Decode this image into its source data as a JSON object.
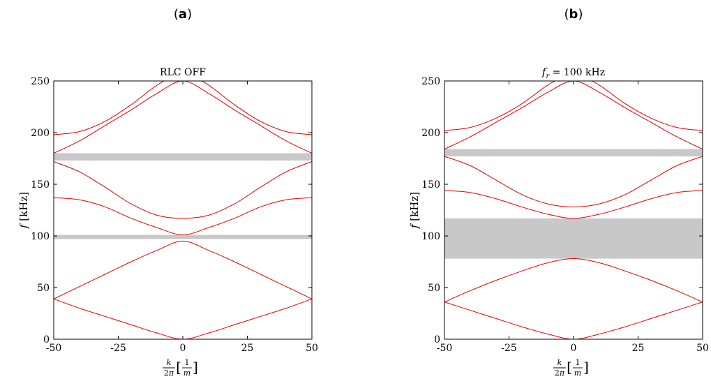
{
  "colors": {
    "curve": "#e00000",
    "band_gap": "#c8c8c8",
    "frame": "#000000"
  },
  "chart_data": [
    {
      "type": "line",
      "panel_label": "a",
      "title": "RLC OFF",
      "xlabel": "k/2π [1/m]",
      "ylabel": "f [kHz]",
      "xlim": [
        -50,
        50
      ],
      "ylim": [
        0,
        250
      ],
      "xticks": [
        "-50",
        "-25",
        "0",
        "25",
        "50"
      ],
      "yticks": [
        "0",
        "50",
        "100",
        "150",
        "200",
        "250"
      ],
      "grid": false,
      "band_gaps": [
        [
          97,
          101
        ],
        [
          173,
          180
        ]
      ],
      "series": [
        {
          "x": [
            -50,
            -40,
            -30,
            -20,
            -10,
            0,
            10,
            20,
            30,
            40,
            50
          ],
          "y": [
            39,
            30,
            22,
            14,
            6,
            0,
            6,
            14,
            22,
            30,
            39
          ]
        },
        {
          "x": [
            -50,
            -40,
            -30,
            -20,
            -10,
            0,
            10,
            20,
            30,
            40,
            50
          ],
          "y": [
            39,
            51,
            63,
            75,
            86,
            95,
            86,
            75,
            63,
            51,
            39
          ]
        },
        {
          "x": [
            -50,
            -40,
            -30,
            -20,
            -10,
            0,
            10,
            20,
            30,
            40,
            50
          ],
          "y": [
            137,
            135,
            128,
            117,
            108,
            101,
            108,
            117,
            128,
            135,
            137
          ]
        },
        {
          "x": [
            -50,
            -40,
            -30,
            -20,
            -10,
            0,
            10,
            20,
            30,
            40,
            50
          ],
          "y": [
            172,
            162,
            147,
            131,
            120,
            117,
            120,
            131,
            147,
            162,
            172
          ]
        },
        {
          "x": [
            -50,
            -40,
            -30,
            -20,
            -10,
            0,
            10,
            20,
            30,
            40,
            50
          ],
          "y": [
            180,
            192,
            207,
            222,
            238,
            250,
            238,
            222,
            207,
            192,
            180
          ]
        },
        {
          "x": [
            -50,
            -40,
            -30,
            -20,
            -10,
            -5,
            5,
            10,
            20,
            30,
            40,
            50
          ],
          "y": [
            198,
            201,
            211,
            227,
            246,
            251,
            251,
            246,
            227,
            211,
            201,
            198
          ]
        }
      ]
    },
    {
      "type": "line",
      "panel_label": "b",
      "title": "f_r = 100 kHz",
      "xlabel": "k/2π [1/m]",
      "ylabel": "f [kHz]",
      "xlim": [
        -50,
        50
      ],
      "ylim": [
        0,
        250
      ],
      "xticks": [
        "-50",
        "-25",
        "0",
        "25",
        "50"
      ],
      "yticks": [
        "0",
        "50",
        "100",
        "150",
        "200",
        "250"
      ],
      "grid": false,
      "band_gaps": [
        [
          78,
          117
        ],
        [
          177,
          184
        ]
      ],
      "series": [
        {
          "x": [
            -50,
            -40,
            -30,
            -20,
            -10,
            0,
            10,
            20,
            30,
            40,
            50
          ],
          "y": [
            36,
            28,
            20,
            12,
            5,
            0,
            5,
            12,
            20,
            28,
            36
          ]
        },
        {
          "x": [
            -50,
            -40,
            -30,
            -20,
            -10,
            0,
            10,
            20,
            30,
            40,
            50
          ],
          "y": [
            36,
            47,
            57,
            66,
            74,
            78,
            74,
            66,
            57,
            47,
            36
          ]
        },
        {
          "x": [
            -50,
            -40,
            -30,
            -20,
            -10,
            0,
            10,
            20,
            30,
            40,
            50
          ],
          "y": [
            144,
            142,
            136,
            128,
            121,
            117,
            121,
            128,
            136,
            142,
            144
          ]
        },
        {
          "x": [
            -50,
            -40,
            -30,
            -20,
            -10,
            0,
            10,
            20,
            30,
            40,
            50
          ],
          "y": [
            177,
            168,
            154,
            140,
            131,
            128,
            131,
            140,
            154,
            168,
            177
          ]
        },
        {
          "x": [
            -50,
            -40,
            -30,
            -20,
            -10,
            0,
            10,
            20,
            30,
            40,
            50
          ],
          "y": [
            184,
            196,
            210,
            224,
            239,
            250,
            239,
            224,
            210,
            196,
            184
          ]
        },
        {
          "x": [
            -50,
            -40,
            -30,
            -20,
            -10,
            -5,
            5,
            10,
            20,
            30,
            40,
            50
          ],
          "y": [
            202,
            205,
            214,
            228,
            246,
            251,
            251,
            246,
            228,
            214,
            205,
            202
          ]
        }
      ]
    }
  ]
}
